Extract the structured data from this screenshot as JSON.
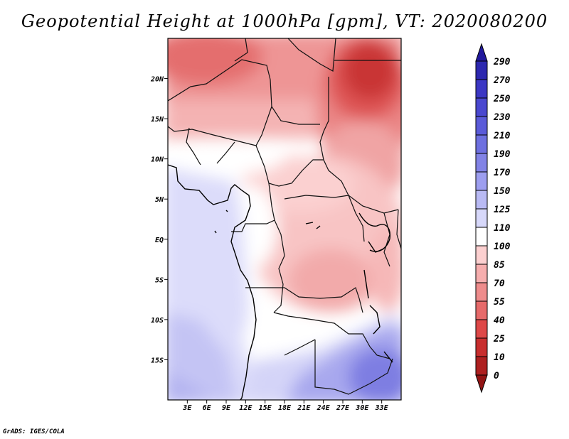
{
  "title": "Geopotential Height at 1000hPa [gpm], VT: 2020080200",
  "credit": "GrADS: IGES/COLA",
  "map": {
    "lon_range": [
      0,
      36
    ],
    "lat_range": [
      -20,
      25
    ],
    "y_axis": {
      "labels": [
        "20N",
        "15N",
        "10N",
        "5N",
        "EQ",
        "5S",
        "10S",
        "15S"
      ],
      "values": [
        20,
        15,
        10,
        5,
        0,
        -5,
        -10,
        -15
      ]
    },
    "x_axis": {
      "labels": [
        "3E",
        "6E",
        "9E",
        "12E",
        "15E",
        "18E",
        "21E",
        "24E",
        "27E",
        "30E",
        "33E"
      ],
      "values": [
        3,
        6,
        9,
        12,
        15,
        18,
        21,
        24,
        27,
        30,
        33
      ]
    }
  },
  "colorbar": {
    "labels": [
      "290",
      "270",
      "250",
      "230",
      "210",
      "190",
      "170",
      "150",
      "125",
      "110",
      "100",
      "85",
      "70",
      "55",
      "40",
      "25",
      "10",
      "0"
    ],
    "colors": [
      "#21189c",
      "#2d28b0",
      "#3c37c4",
      "#4a48d0",
      "#5b5bd9",
      "#6e70e0",
      "#8283e6",
      "#9d9eef",
      "#b9baf4",
      "#d7d8fa",
      "#ffffff",
      "#fcd0d0",
      "#f6aeae",
      "#ee8c8c",
      "#e66a6a",
      "#de4848",
      "#c82e2e",
      "#ae2020",
      "#921414"
    ]
  }
}
